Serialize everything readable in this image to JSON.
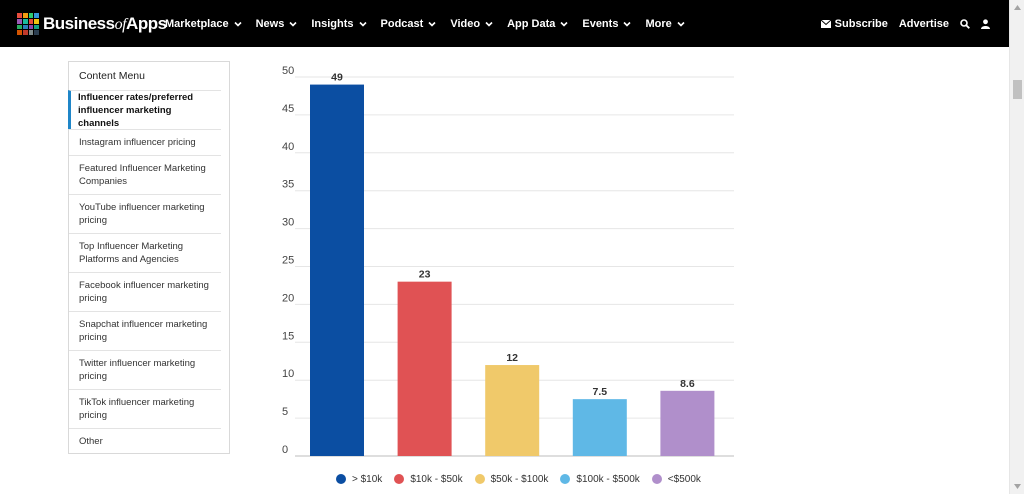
{
  "brand": {
    "name_prefix": "Business",
    "name_of": "of",
    "name_suffix": "Apps",
    "logo_colors": [
      "#e84c3d",
      "#f39c12",
      "#2ecc71",
      "#3498db",
      "#9b59b6",
      "#1abc9c",
      "#e74c3c",
      "#f1c40f",
      "#27ae60",
      "#2980b9",
      "#8e44ad",
      "#16a085",
      "#d35400",
      "#c0392b",
      "#7f8c8d",
      "#2c3e50"
    ]
  },
  "nav": {
    "items": [
      {
        "label": "Marketplace"
      },
      {
        "label": "News"
      },
      {
        "label": "Insights"
      },
      {
        "label": "Podcast"
      },
      {
        "label": "Video"
      },
      {
        "label": "App Data"
      },
      {
        "label": "Events"
      },
      {
        "label": "More"
      }
    ],
    "subscribe_label": "Subscribe",
    "advertise_label": "Advertise"
  },
  "content_menu": {
    "title": "Content Menu",
    "items": [
      {
        "label": "Influencer rates/preferred influencer marketing channels",
        "active": true
      },
      {
        "label": "Instagram influencer pricing",
        "active": false
      },
      {
        "label": "Featured Influencer Marketing Companies",
        "active": false
      },
      {
        "label": "YouTube influencer marketing pricing",
        "active": false
      },
      {
        "label": "Top Influencer Marketing Platforms and Agencies",
        "active": false
      },
      {
        "label": "Facebook influencer marketing pricing",
        "active": false
      },
      {
        "label": "Snapchat influencer marketing pricing",
        "active": false
      },
      {
        "label": "Twitter influencer marketing pricing",
        "active": false
      },
      {
        "label": "TikTok influencer marketing pricing",
        "active": false
      },
      {
        "label": "Other",
        "active": false
      }
    ]
  },
  "chart_data": {
    "type": "bar",
    "title": "",
    "xlabel": "",
    "ylabel": "",
    "categories": [
      "> $10k",
      "$10k - $50k",
      "$50k - $100k",
      "$100k - $500k",
      "<$500k"
    ],
    "values": [
      49,
      23,
      12,
      7.5,
      8.6
    ],
    "value_labels": [
      "49",
      "23",
      "12",
      "7.5",
      "8.6"
    ],
    "colors": [
      "#0b4ea2",
      "#e05254",
      "#f0c96a",
      "#5fb8e6",
      "#b08fcb"
    ],
    "ylim": [
      0,
      50
    ],
    "yticks": [
      "0",
      "5",
      "10",
      "15",
      "20",
      "25",
      "30",
      "35",
      "40",
      "45",
      "50"
    ],
    "grid": true,
    "legend_position": "bottom"
  }
}
